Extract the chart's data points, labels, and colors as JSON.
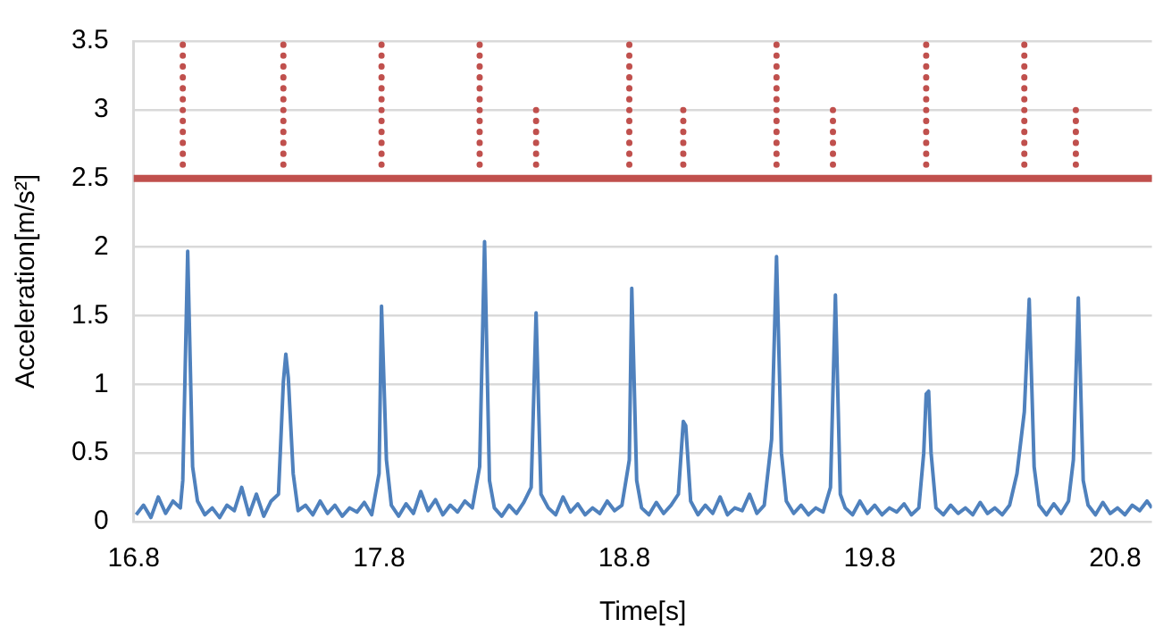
{
  "chart_data": {
    "type": "line",
    "xlabel": "Time[s]",
    "ylabel": "Acceleration[m/s²]",
    "xlim": [
      16.8,
      20.95
    ],
    "xticks": [
      16.8,
      17.8,
      18.8,
      19.8,
      20.8
    ],
    "ylim": [
      0,
      3.5
    ],
    "yticks": [
      0,
      0.5,
      1,
      1.5,
      2,
      2.5,
      3,
      3.5
    ],
    "grid": "y",
    "legend": false,
    "marker": "none",
    "ref_lines": [
      {
        "axis": "y",
        "value": 2.5,
        "color": "#c0504d"
      }
    ],
    "series": [
      {
        "color": "#4f81bd",
        "line_style": "solid",
        "x": [
          16.81,
          16.84,
          16.87,
          16.9,
          16.93,
          16.96,
          16.99,
          17.0,
          17.02,
          17.04,
          17.06,
          17.09,
          17.12,
          17.15,
          17.18,
          17.21,
          17.24,
          17.27,
          17.3,
          17.33,
          17.36,
          17.39,
          17.41,
          17.42,
          17.43,
          17.45,
          17.47,
          17.5,
          17.53,
          17.56,
          17.59,
          17.62,
          17.65,
          17.68,
          17.71,
          17.74,
          17.77,
          17.8,
          17.81,
          17.83,
          17.85,
          17.88,
          17.91,
          17.94,
          17.97,
          18.0,
          18.03,
          18.06,
          18.09,
          18.12,
          18.15,
          18.18,
          18.21,
          18.23,
          18.25,
          18.27,
          18.3,
          18.33,
          18.36,
          18.39,
          18.42,
          18.44,
          18.46,
          18.49,
          18.52,
          18.55,
          18.58,
          18.61,
          18.64,
          18.67,
          18.7,
          18.73,
          18.76,
          18.79,
          18.82,
          18.83,
          18.85,
          18.87,
          18.9,
          18.93,
          18.96,
          18.99,
          19.02,
          19.04,
          19.05,
          19.07,
          19.1,
          19.13,
          19.16,
          19.19,
          19.22,
          19.25,
          19.28,
          19.31,
          19.34,
          19.37,
          19.4,
          19.42,
          19.44,
          19.46,
          19.49,
          19.52,
          19.55,
          19.58,
          19.61,
          19.64,
          19.66,
          19.68,
          19.7,
          19.73,
          19.76,
          19.79,
          19.82,
          19.85,
          19.88,
          19.91,
          19.94,
          19.97,
          20.0,
          20.02,
          20.03,
          20.04,
          20.05,
          20.07,
          20.1,
          20.13,
          20.16,
          20.19,
          20.22,
          20.25,
          20.28,
          20.31,
          20.34,
          20.37,
          20.4,
          20.43,
          20.45,
          20.47,
          20.49,
          20.52,
          20.55,
          20.58,
          20.61,
          20.63,
          20.65,
          20.67,
          20.69,
          20.72,
          20.75,
          20.78,
          20.81,
          20.84,
          20.87,
          20.9,
          20.93,
          20.95
        ],
        "values": [
          0.05,
          0.12,
          0.03,
          0.18,
          0.06,
          0.15,
          0.1,
          0.3,
          1.97,
          0.4,
          0.15,
          0.05,
          0.1,
          0.03,
          0.12,
          0.08,
          0.25,
          0.05,
          0.2,
          0.04,
          0.15,
          0.2,
          1.02,
          1.22,
          1.05,
          0.35,
          0.08,
          0.12,
          0.05,
          0.15,
          0.06,
          0.12,
          0.04,
          0.1,
          0.07,
          0.14,
          0.05,
          0.35,
          1.57,
          0.45,
          0.12,
          0.04,
          0.13,
          0.06,
          0.22,
          0.08,
          0.16,
          0.05,
          0.12,
          0.07,
          0.15,
          0.1,
          0.4,
          2.04,
          0.3,
          0.1,
          0.04,
          0.12,
          0.06,
          0.14,
          0.25,
          1.52,
          0.2,
          0.1,
          0.05,
          0.18,
          0.07,
          0.13,
          0.05,
          0.1,
          0.06,
          0.15,
          0.08,
          0.12,
          0.45,
          1.7,
          0.3,
          0.1,
          0.05,
          0.14,
          0.06,
          0.12,
          0.2,
          0.73,
          0.7,
          0.15,
          0.05,
          0.12,
          0.06,
          0.18,
          0.05,
          0.1,
          0.08,
          0.2,
          0.06,
          0.12,
          0.6,
          1.93,
          0.5,
          0.15,
          0.06,
          0.12,
          0.05,
          0.1,
          0.07,
          0.25,
          1.65,
          0.2,
          0.1,
          0.05,
          0.15,
          0.06,
          0.12,
          0.05,
          0.1,
          0.07,
          0.13,
          0.05,
          0.1,
          0.5,
          0.93,
          0.95,
          0.5,
          0.1,
          0.05,
          0.12,
          0.06,
          0.1,
          0.05,
          0.14,
          0.06,
          0.1,
          0.05,
          0.12,
          0.35,
          0.8,
          1.62,
          0.4,
          0.12,
          0.05,
          0.13,
          0.06,
          0.15,
          0.45,
          1.63,
          0.3,
          0.12,
          0.05,
          0.14,
          0.06,
          0.1,
          0.05,
          0.12,
          0.08,
          0.15,
          0.1
        ]
      },
      {
        "color": "#c0504d",
        "line_style": "dotted",
        "x": [
          17.0,
          17.0
        ],
        "values": [
          2.6,
          3.5
        ]
      },
      {
        "color": "#c0504d",
        "line_style": "dotted",
        "x": [
          17.41,
          17.41
        ],
        "values": [
          2.6,
          3.5
        ]
      },
      {
        "color": "#c0504d",
        "line_style": "dotted",
        "x": [
          17.81,
          17.81
        ],
        "values": [
          2.6,
          3.5
        ]
      },
      {
        "color": "#c0504d",
        "line_style": "dotted",
        "x": [
          18.21,
          18.21
        ],
        "values": [
          2.6,
          3.5
        ]
      },
      {
        "color": "#c0504d",
        "line_style": "dotted",
        "x": [
          18.44,
          18.44
        ],
        "values": [
          2.6,
          3.0
        ]
      },
      {
        "color": "#c0504d",
        "line_style": "dotted",
        "x": [
          18.82,
          18.82
        ],
        "values": [
          2.6,
          3.5
        ]
      },
      {
        "color": "#c0504d",
        "line_style": "dotted",
        "x": [
          19.04,
          19.04
        ],
        "values": [
          2.6,
          3.0
        ]
      },
      {
        "color": "#c0504d",
        "line_style": "dotted",
        "x": [
          19.42,
          19.42
        ],
        "values": [
          2.6,
          3.5
        ]
      },
      {
        "color": "#c0504d",
        "line_style": "dotted",
        "x": [
          19.65,
          19.65
        ],
        "values": [
          2.6,
          3.0
        ]
      },
      {
        "color": "#c0504d",
        "line_style": "dotted",
        "x": [
          20.03,
          20.03
        ],
        "values": [
          2.6,
          3.5
        ]
      },
      {
        "color": "#c0504d",
        "line_style": "dotted",
        "x": [
          20.43,
          20.43
        ],
        "values": [
          2.6,
          3.5
        ]
      },
      {
        "color": "#c0504d",
        "line_style": "dotted",
        "x": [
          20.64,
          20.64
        ],
        "values": [
          2.6,
          3.0
        ]
      }
    ]
  }
}
